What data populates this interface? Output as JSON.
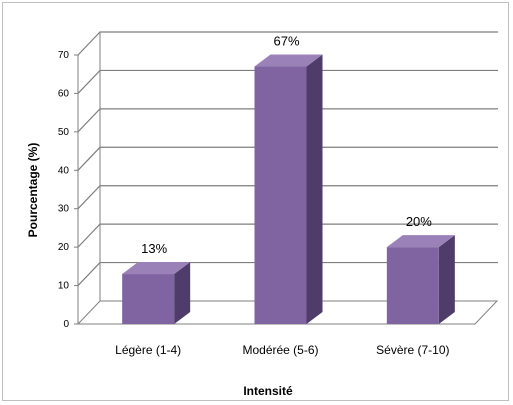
{
  "chart_data": {
    "type": "bar",
    "title": "",
    "xlabel": "Intensité",
    "ylabel": "Pourcentage (%)",
    "categories": [
      "Légère (1-4)",
      "Modérée (5-6)",
      "Sévère (7-10)"
    ],
    "values": [
      13,
      67,
      20
    ],
    "data_labels": [
      "13%",
      "67%",
      "20%"
    ],
    "ylim": [
      0,
      70
    ],
    "yticks": [
      0,
      10,
      20,
      30,
      40,
      50,
      60,
      70
    ],
    "grid": true,
    "legend": "none",
    "style": "3d-column",
    "colors": {
      "bar_front": "#8064a2",
      "bar_side": "#4f3c6b",
      "bar_top": "#9a82b9",
      "grid": "#7f7f7f"
    }
  }
}
